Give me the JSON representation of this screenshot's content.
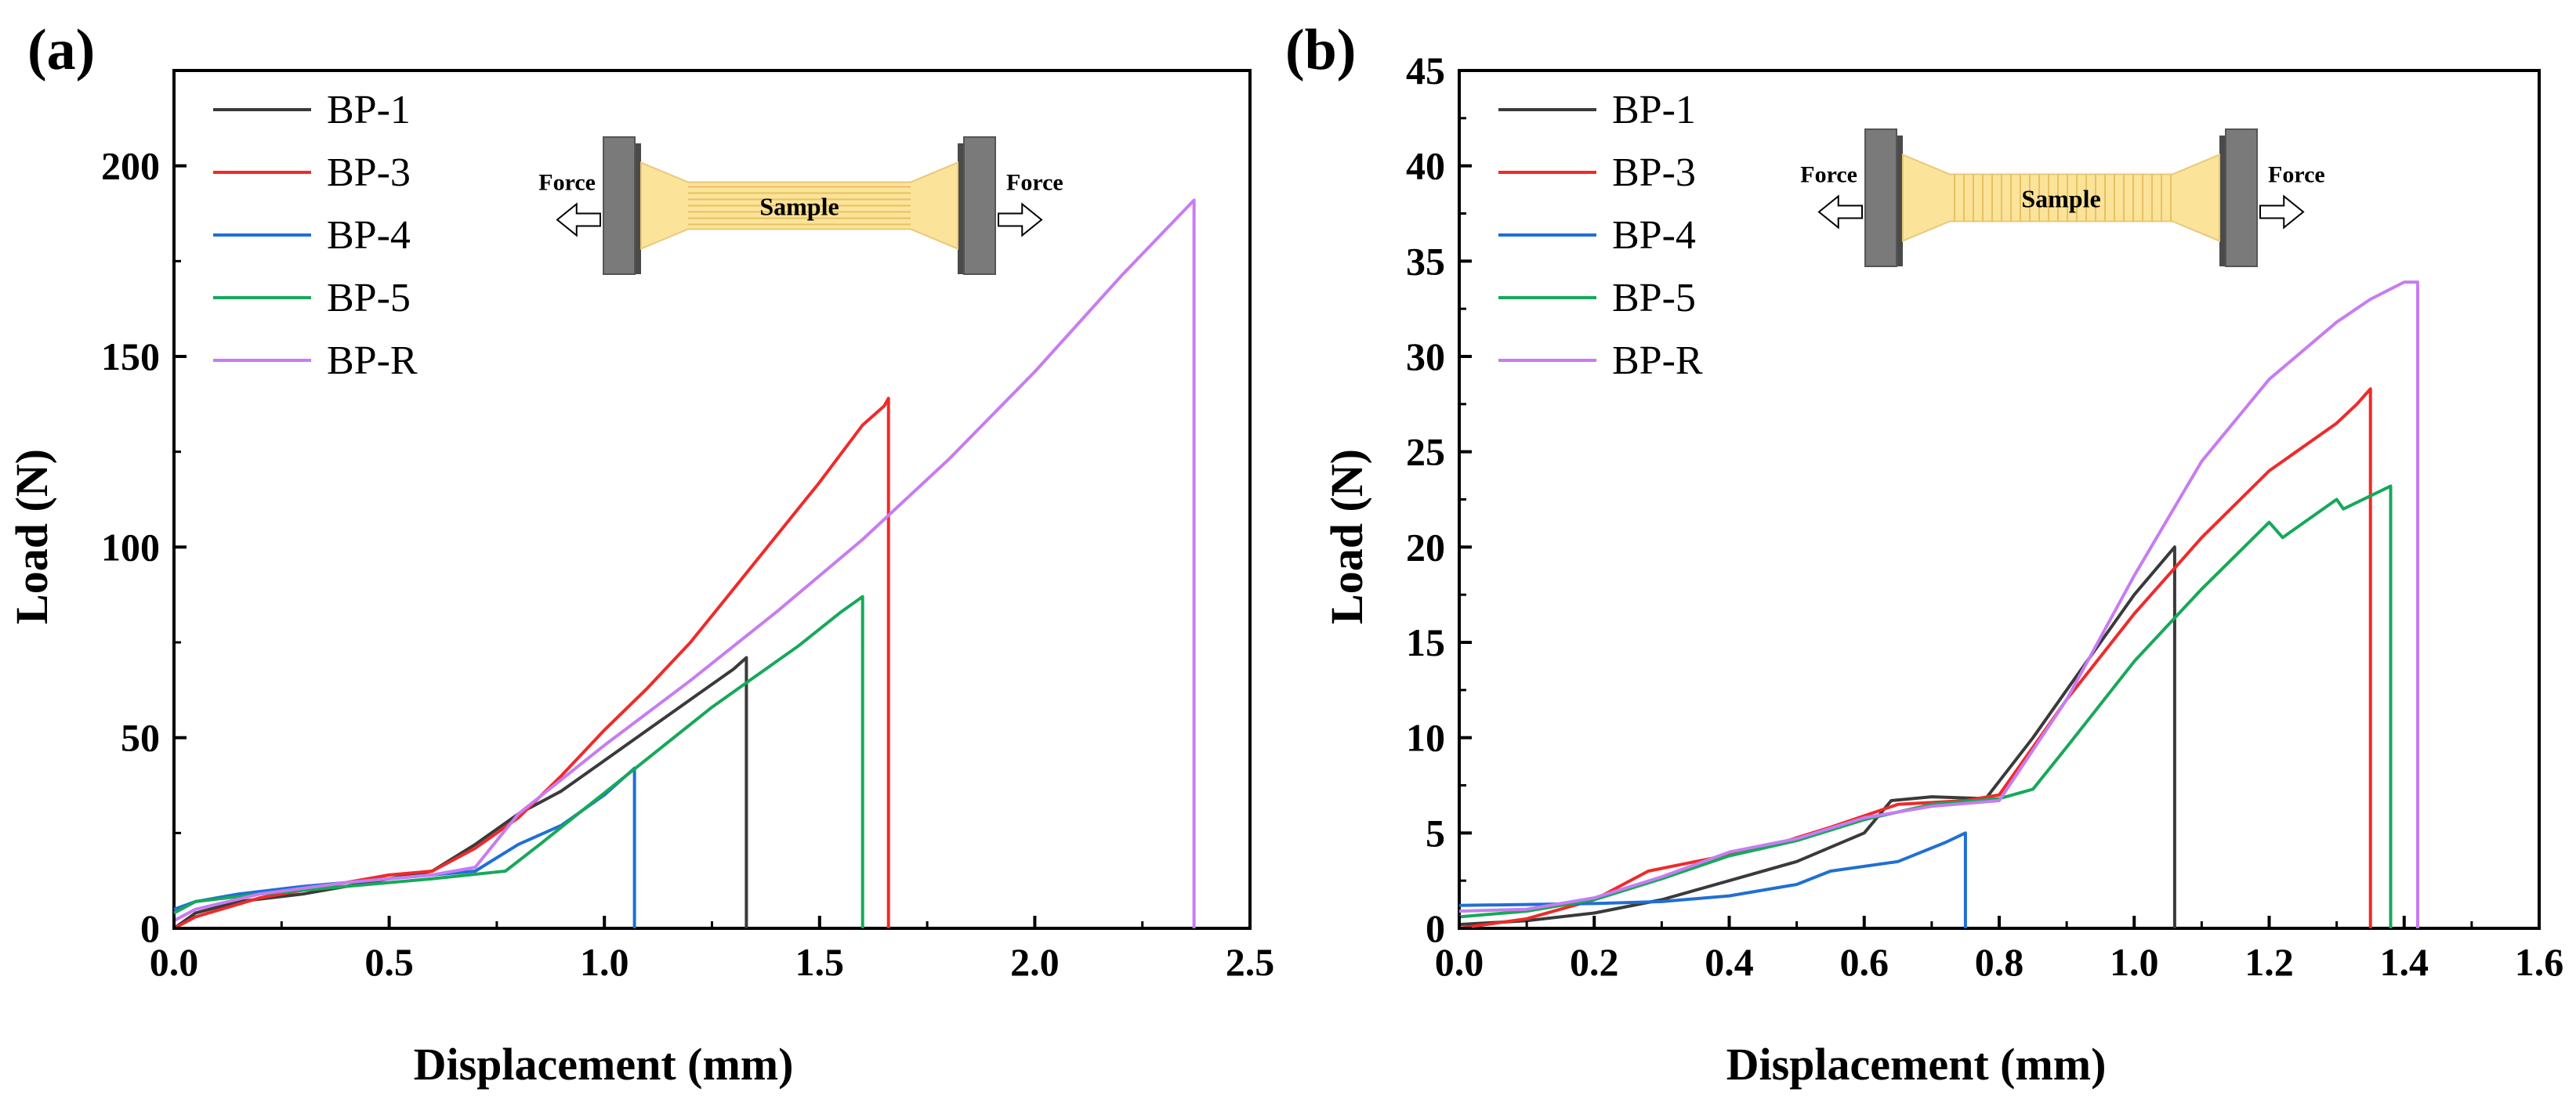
{
  "figure": {
    "panels": [
      "(a)",
      "(b)"
    ],
    "schematic": {
      "force_label": "Force",
      "sample_label": "Sample"
    }
  },
  "colors": {
    "BP-1": "#3a3a3a",
    "BP-3": "#ef2a2a",
    "BP-4": "#1f6fd6",
    "BP-5": "#17a85a",
    "BP-R": "#c77cf2",
    "grip": "#7a7a7a",
    "sample": "#fbe39a"
  },
  "chart_data": [
    {
      "panel": "(a)",
      "type": "line",
      "title": "",
      "xlabel": "Displacement (mm)",
      "ylabel": "Load (N)",
      "xlim": [
        0,
        2.5
      ],
      "ylim": [
        0,
        225
      ],
      "xticks": [
        0.0,
        0.5,
        1.0,
        1.5,
        2.0,
        2.5
      ],
      "xtick_labels": [
        "0.0",
        "0.5",
        "1.0",
        "1.5",
        "2.0",
        "2.5"
      ],
      "yticks": [
        0,
        50,
        100,
        150,
        200
      ],
      "ytick_labels": [
        "0",
        "50",
        "100",
        "150",
        "200"
      ],
      "grid": false,
      "legend": [
        "BP-1",
        "BP-3",
        "BP-4",
        "BP-5",
        "BP-R"
      ],
      "legend_position": "top-left",
      "schematic_lines": "horizontal",
      "series": [
        {
          "name": "BP-1",
          "x": [
            0,
            0.05,
            0.15,
            0.3,
            0.45,
            0.6,
            0.7,
            0.8,
            0.9,
            1.0,
            1.1,
            1.2,
            1.3,
            1.33,
            1.33
          ],
          "y": [
            0,
            4,
            7,
            9,
            12,
            15,
            22,
            30,
            36,
            44,
            52,
            60,
            68,
            71,
            0
          ]
        },
        {
          "name": "BP-3",
          "x": [
            0,
            0.05,
            0.2,
            0.4,
            0.5,
            0.6,
            0.7,
            0.8,
            0.9,
            1.0,
            1.1,
            1.2,
            1.3,
            1.4,
            1.5,
            1.6,
            1.65,
            1.66,
            1.66
          ],
          "y": [
            0,
            3,
            8,
            12,
            14,
            15,
            21,
            29,
            40,
            52,
            63,
            75,
            89,
            103,
            117,
            132,
            137,
            139,
            0
          ]
        },
        {
          "name": "BP-4",
          "x": [
            0,
            0.05,
            0.15,
            0.3,
            0.5,
            0.7,
            0.8,
            0.9,
            1.0,
            1.07,
            1.07
          ],
          "y": [
            5,
            7,
            9,
            11,
            13,
            15,
            22,
            27,
            35,
            42,
            0
          ]
        },
        {
          "name": "BP-5",
          "x": [
            0,
            0.05,
            0.2,
            0.4,
            0.6,
            0.77,
            0.85,
            0.95,
            1.05,
            1.15,
            1.25,
            1.35,
            1.45,
            1.55,
            1.6,
            1.6
          ],
          "y": [
            4,
            7,
            9,
            11,
            13,
            15,
            22,
            31,
            40,
            49,
            58,
            66,
            74,
            83,
            87,
            0
          ]
        },
        {
          "name": "BP-R",
          "x": [
            0,
            0.05,
            0.2,
            0.4,
            0.6,
            0.7,
            0.8,
            1.0,
            1.2,
            1.4,
            1.6,
            1.8,
            2.0,
            2.2,
            2.37,
            2.37
          ],
          "y": [
            2,
            5,
            9,
            12,
            14,
            16,
            30,
            48,
            65,
            83,
            102,
            123,
            146,
            171,
            191,
            0
          ]
        }
      ]
    },
    {
      "panel": "(b)",
      "type": "line",
      "title": "",
      "xlabel": "Displacement (mm)",
      "ylabel": "Load (N)",
      "xlim": [
        0,
        1.6
      ],
      "ylim": [
        0,
        45
      ],
      "xticks": [
        0.0,
        0.2,
        0.4,
        0.6,
        0.8,
        1.0,
        1.2,
        1.4,
        1.6
      ],
      "xtick_labels": [
        "0.0",
        "0.2",
        "0.4",
        "0.6",
        "0.8",
        "1.0",
        "1.2",
        "1.4",
        "1.6"
      ],
      "yticks": [
        0,
        5,
        10,
        15,
        20,
        25,
        30,
        35,
        40,
        45
      ],
      "ytick_labels": [
        "0",
        "5",
        "10",
        "15",
        "20",
        "25",
        "30",
        "35",
        "40",
        "45"
      ],
      "grid": false,
      "legend": [
        "BP-1",
        "BP-3",
        "BP-4",
        "BP-5",
        "BP-R"
      ],
      "legend_position": "top-left",
      "schematic_lines": "vertical",
      "series": [
        {
          "name": "BP-1",
          "x": [
            0,
            0.1,
            0.2,
            0.3,
            0.4,
            0.5,
            0.6,
            0.64,
            0.7,
            0.78,
            0.85,
            0.9,
            0.95,
            1.0,
            1.06,
            1.06
          ],
          "y": [
            0.2,
            0.4,
            0.8,
            1.5,
            2.5,
            3.5,
            5.0,
            6.7,
            6.9,
            6.8,
            10.0,
            12.5,
            15.0,
            17.5,
            20.0,
            0
          ]
        },
        {
          "name": "BP-3",
          "x": [
            0,
            0.1,
            0.2,
            0.28,
            0.35,
            0.45,
            0.55,
            0.65,
            0.75,
            0.8,
            0.85,
            0.9,
            1.0,
            1.1,
            1.2,
            1.3,
            1.33,
            1.35,
            1.35
          ],
          "y": [
            0,
            0.5,
            1.5,
            3.0,
            3.5,
            4.2,
            5.3,
            6.5,
            6.7,
            7.0,
            9.5,
            12.0,
            16.5,
            20.5,
            24.0,
            26.5,
            27.5,
            28.3,
            0
          ]
        },
        {
          "name": "BP-4",
          "x": [
            0,
            0.2,
            0.3,
            0.4,
            0.5,
            0.55,
            0.65,
            0.72,
            0.75,
            0.75
          ],
          "y": [
            1.2,
            1.3,
            1.4,
            1.7,
            2.3,
            3.0,
            3.5,
            4.5,
            5.0,
            0
          ]
        },
        {
          "name": "BP-5",
          "x": [
            0,
            0.1,
            0.2,
            0.3,
            0.4,
            0.5,
            0.6,
            0.7,
            0.8,
            0.85,
            0.9,
            1.0,
            1.1,
            1.2,
            1.22,
            1.3,
            1.31,
            1.38,
            1.38
          ],
          "y": [
            0.6,
            0.9,
            1.5,
            2.6,
            3.8,
            4.6,
            5.7,
            6.5,
            6.8,
            7.3,
            9.5,
            14.0,
            17.8,
            21.3,
            20.5,
            22.5,
            22.0,
            23.2,
            0
          ]
        },
        {
          "name": "BP-R",
          "x": [
            0,
            0.1,
            0.2,
            0.3,
            0.4,
            0.5,
            0.6,
            0.7,
            0.8,
            0.9,
            1.0,
            1.1,
            1.2,
            1.3,
            1.35,
            1.4,
            1.42,
            1.42
          ],
          "y": [
            0.9,
            1.0,
            1.6,
            2.7,
            4.0,
            4.7,
            5.8,
            6.4,
            6.7,
            12.0,
            18.5,
            24.5,
            28.8,
            31.8,
            33.0,
            33.9,
            33.9,
            0
          ]
        }
      ]
    }
  ]
}
